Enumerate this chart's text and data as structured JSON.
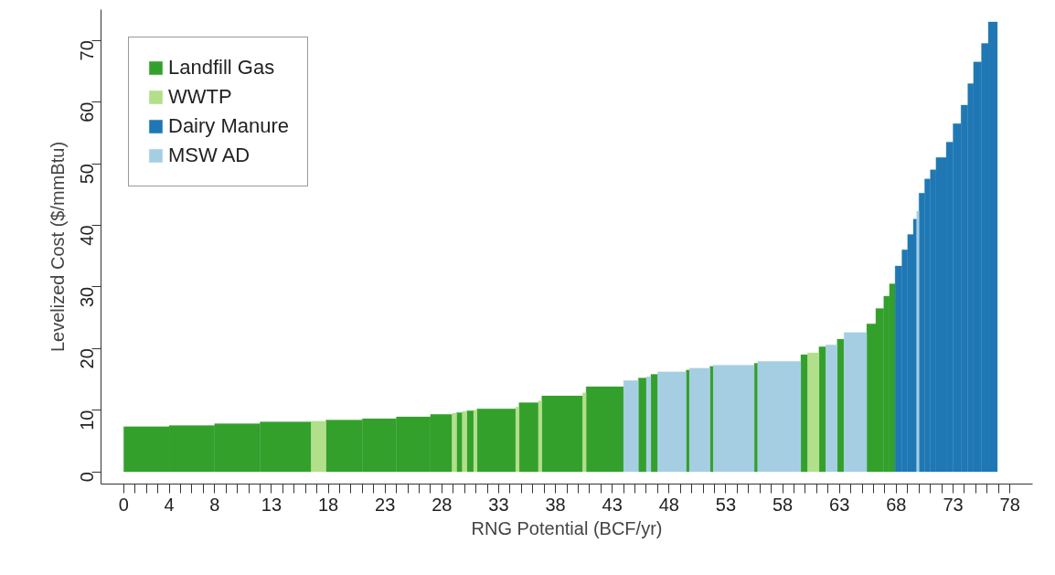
{
  "chart_data": {
    "type": "histogram",
    "xlabel": "RNG Potential (BCF/yr)",
    "ylabel": "Levelized Cost ($/mmBtu)",
    "bins": [
      0,
      4,
      8,
      12,
      16.5,
      17.8,
      21,
      24,
      27,
      28.9,
      29.3,
      29.8,
      30.2,
      30.8,
      31.1,
      34.5,
      34.8,
      36.5,
      36.8,
      40.4,
      40.7,
      44,
      45.3,
      46,
      46.4,
      47,
      49.5,
      49.8,
      51.6,
      51.9,
      55.5,
      55.8,
      59.6,
      60.2,
      61.2,
      61.8,
      62.8,
      63.4,
      65.4,
      66.2,
      66.9,
      67.4,
      67.9,
      68.5,
      69,
      69.5,
      69.8,
      70,
      70.5,
      71,
      71.5,
      72.4,
      73,
      73.7,
      74.3,
      74.8,
      75.5,
      76.1,
      76.9
    ],
    "series": [
      {
        "name": "Landfill Gas",
        "color": "#33a02c",
        "values": [
          7.3,
          7.5,
          7.8,
          8.1,
          null,
          8.4,
          8.6,
          8.9,
          9.3,
          null,
          9.6,
          null,
          9.9,
          null,
          10.2,
          null,
          11.2,
          null,
          12.3,
          null,
          13.8,
          null,
          15.2,
          null,
          15.8,
          null,
          16.5,
          null,
          17.1,
          null,
          17.6,
          null,
          19,
          null,
          20.3,
          null,
          21.5,
          null,
          24,
          26.5,
          28.5,
          30.5,
          null,
          null,
          null,
          null,
          null,
          null,
          null,
          null,
          null,
          null,
          null,
          null,
          null,
          null,
          null,
          null
        ]
      },
      {
        "name": "WWTP",
        "color": "#b2df8a",
        "values": [
          null,
          null,
          null,
          null,
          8.2,
          null,
          null,
          null,
          null,
          9.5,
          null,
          9.8,
          null,
          10,
          null,
          10.5,
          null,
          11.5,
          null,
          12.8,
          null,
          null,
          null,
          null,
          null,
          null,
          null,
          null,
          null,
          null,
          null,
          null,
          null,
          19.3,
          null,
          null,
          null,
          null,
          null,
          null,
          null,
          null,
          null,
          null,
          null,
          null,
          null,
          null,
          null,
          null,
          null,
          null,
          null,
          null,
          null,
          null,
          null,
          null
        ]
      },
      {
        "name": "Dairy Manure",
        "color": "#1f78b4",
        "values": [
          null,
          null,
          null,
          null,
          null,
          null,
          null,
          null,
          null,
          null,
          null,
          null,
          null,
          null,
          null,
          null,
          null,
          null,
          null,
          null,
          null,
          null,
          null,
          null,
          null,
          null,
          null,
          null,
          null,
          null,
          null,
          null,
          null,
          null,
          null,
          null,
          null,
          null,
          null,
          null,
          null,
          null,
          33.4,
          36,
          38.5,
          41,
          null,
          45.2,
          47.5,
          49,
          51,
          53.5,
          56.5,
          59.5,
          63,
          66.5,
          69.5,
          73
        ]
      },
      {
        "name": "MSW AD",
        "color": "#a6cee3",
        "values": [
          null,
          null,
          null,
          null,
          null,
          null,
          null,
          null,
          null,
          null,
          null,
          null,
          null,
          null,
          null,
          null,
          null,
          null,
          null,
          null,
          null,
          14.8,
          null,
          15.4,
          null,
          16.2,
          null,
          16.8,
          null,
          17.3,
          null,
          17.9,
          null,
          null,
          null,
          20.6,
          null,
          22.6,
          null,
          null,
          null,
          null,
          null,
          null,
          null,
          null,
          42.3,
          null,
          null,
          null,
          null,
          null,
          null,
          null,
          null,
          null,
          null,
          null
        ]
      }
    ],
    "xlim": [
      -2,
      80
    ],
    "ylim": [
      -2,
      75
    ],
    "xticks": [
      0,
      {
        "value": 1,
        "label": null
      },
      {
        "value": 2,
        "label": null
      },
      {
        "value": 3,
        "label": null
      },
      4,
      {
        "value": 5,
        "label": null
      },
      {
        "value": 6,
        "label": null
      },
      {
        "value": 7,
        "label": null
      },
      8,
      {
        "value": 9,
        "label": null
      },
      {
        "value": 10,
        "label": null
      },
      {
        "value": 11,
        "label": null
      },
      {
        "value": 12,
        "label": null
      },
      13,
      {
        "value": 14,
        "label": null
      },
      {
        "value": 15,
        "label": null
      },
      {
        "value": 16,
        "label": null
      },
      {
        "value": 17,
        "label": null
      },
      18,
      {
        "value": 19,
        "label": null
      },
      {
        "value": 20,
        "label": null
      },
      {
        "value": 21,
        "label": null
      },
      {
        "value": 22,
        "label": null
      },
      23,
      {
        "value": 24,
        "label": null
      },
      {
        "value": 25,
        "label": null
      },
      {
        "value": 26,
        "label": null
      },
      {
        "value": 27,
        "label": null
      },
      28,
      {
        "value": 29,
        "label": null
      },
      {
        "value": 30,
        "label": null
      },
      {
        "value": 31,
        "label": null
      },
      {
        "value": 32,
        "label": null
      },
      33,
      {
        "value": 34,
        "label": null
      },
      {
        "value": 35,
        "label": null
      },
      {
        "value": 36,
        "label": null
      },
      {
        "value": 37,
        "label": null
      },
      38,
      {
        "value": 39,
        "label": null
      },
      {
        "value": 40,
        "label": null
      },
      {
        "value": 41,
        "label": null
      },
      {
        "value": 42,
        "label": null
      },
      43,
      {
        "value": 44,
        "label": null
      },
      {
        "value": 45,
        "label": null
      },
      {
        "value": 46,
        "label": null
      },
      {
        "value": 47,
        "label": null
      },
      48,
      {
        "value": 49,
        "label": null
      },
      {
        "value": 50,
        "label": null
      },
      {
        "value": 51,
        "label": null
      },
      {
        "value": 52,
        "label": null
      },
      53,
      {
        "value": 54,
        "label": null
      },
      {
        "value": 55,
        "label": null
      },
      {
        "value": 56,
        "label": null
      },
      {
        "value": 57,
        "label": null
      },
      58,
      {
        "value": 59,
        "label": null
      },
      {
        "value": 60,
        "label": null
      },
      {
        "value": 61,
        "label": null
      },
      {
        "value": 62,
        "label": null
      },
      63,
      {
        "value": 64,
        "label": null
      },
      {
        "value": 65,
        "label": null
      },
      {
        "value": 66,
        "label": null
      },
      {
        "value": 67,
        "label": null
      },
      68,
      {
        "value": 69,
        "label": null
      },
      {
        "value": 70,
        "label": null
      },
      {
        "value": 71,
        "label": null
      },
      {
        "value": 72,
        "label": null
      },
      73,
      {
        "value": 74,
        "label": null
      },
      {
        "value": 75,
        "label": null
      },
      {
        "value": 76,
        "label": null
      },
      {
        "value": 77,
        "label": null
      },
      78
    ],
    "yticks": [
      0,
      10,
      20,
      30,
      40,
      50,
      60,
      70
    ],
    "grid": false,
    "legend": "top left"
  }
}
